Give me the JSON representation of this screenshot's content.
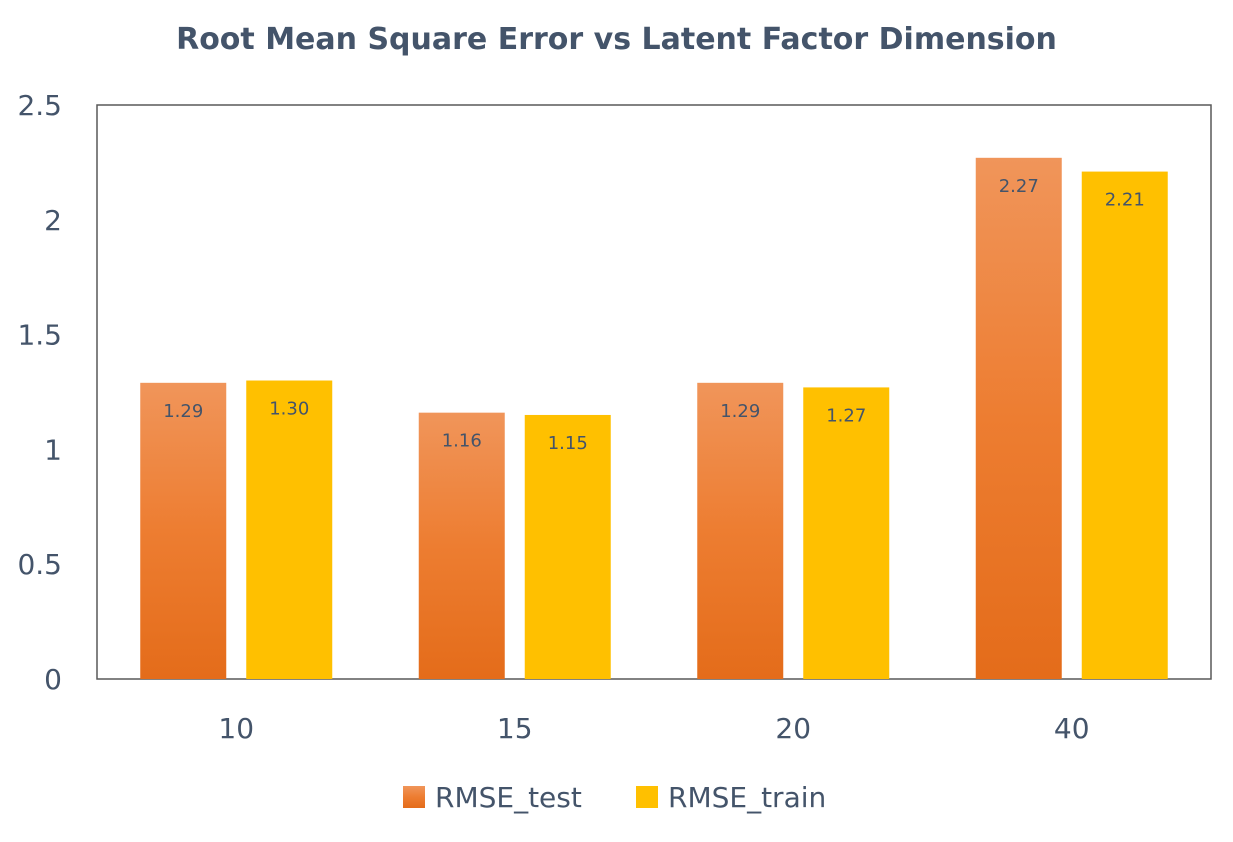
{
  "chart_data": {
    "type": "bar",
    "title": "Root Mean Square Error vs Latent Factor Dimension",
    "xlabel": "",
    "ylabel": "",
    "categories": [
      "10",
      "15",
      "20",
      "40"
    ],
    "series": [
      {
        "name": "RMSE_test",
        "values": [
          1.29,
          1.16,
          1.29,
          2.27
        ],
        "labels": [
          "1.29",
          "1.16",
          "1.29",
          "2.27"
        ],
        "color": "#ed7d31",
        "color_light": "#f0955a",
        "color_dark": "#e46c1a"
      },
      {
        "name": "RMSE_train",
        "values": [
          1.3,
          1.15,
          1.27,
          2.21
        ],
        "labels": [
          "1.30",
          "1.15",
          "1.27",
          "2.21"
        ],
        "color": "#ffc000"
      }
    ],
    "ylim": [
      0,
      2.5
    ],
    "yticks": [
      "0",
      "0.5",
      "1",
      "1.5",
      "2",
      "2.5"
    ],
    "ytick_values": [
      0,
      0.5,
      1,
      1.5,
      2,
      2.5
    ],
    "grid": false,
    "legend_position": "bottom",
    "colors": {
      "text": "#44546a",
      "axis": "#595959"
    }
  }
}
